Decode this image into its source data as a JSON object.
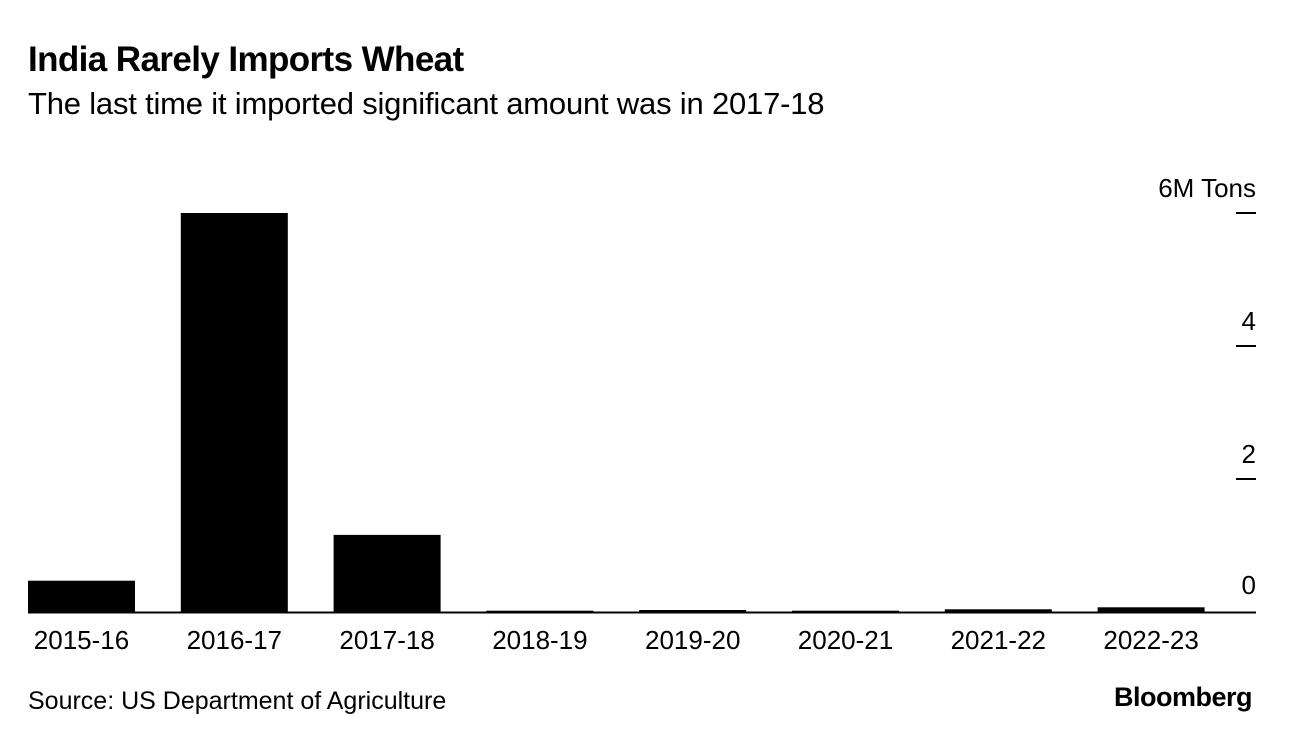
{
  "header": {
    "title": "India Rarely Imports Wheat",
    "subtitle": "The last time it imported significant amount was in 2017-18"
  },
  "footer": {
    "source": "Source: US Department of Agriculture",
    "brand": "Bloomberg"
  },
  "colors": {
    "bar": "#000000",
    "axis": "#000000",
    "background": "#ffffff"
  },
  "chart_data": {
    "type": "bar",
    "title": "India Rarely Imports Wheat",
    "subtitle": "The last time it imported significant amount was in 2017-18",
    "xlabel": "",
    "ylabel": "M Tons",
    "categories": [
      "2015-16",
      "2016-17",
      "2017-18",
      "2018-19",
      "2019-20",
      "2020-21",
      "2021-22",
      "2022-23"
    ],
    "values": [
      0.47,
      6.0,
      1.16,
      0.02,
      0.03,
      0.02,
      0.04,
      0.07
    ],
    "ylim": [
      0,
      6
    ],
    "yticks": [
      0,
      2,
      4,
      6
    ],
    "ytick_labels": [
      "0",
      "2",
      "4",
      "6M Tons"
    ],
    "y_axis_side": "right",
    "grid": false,
    "legend": "none"
  }
}
